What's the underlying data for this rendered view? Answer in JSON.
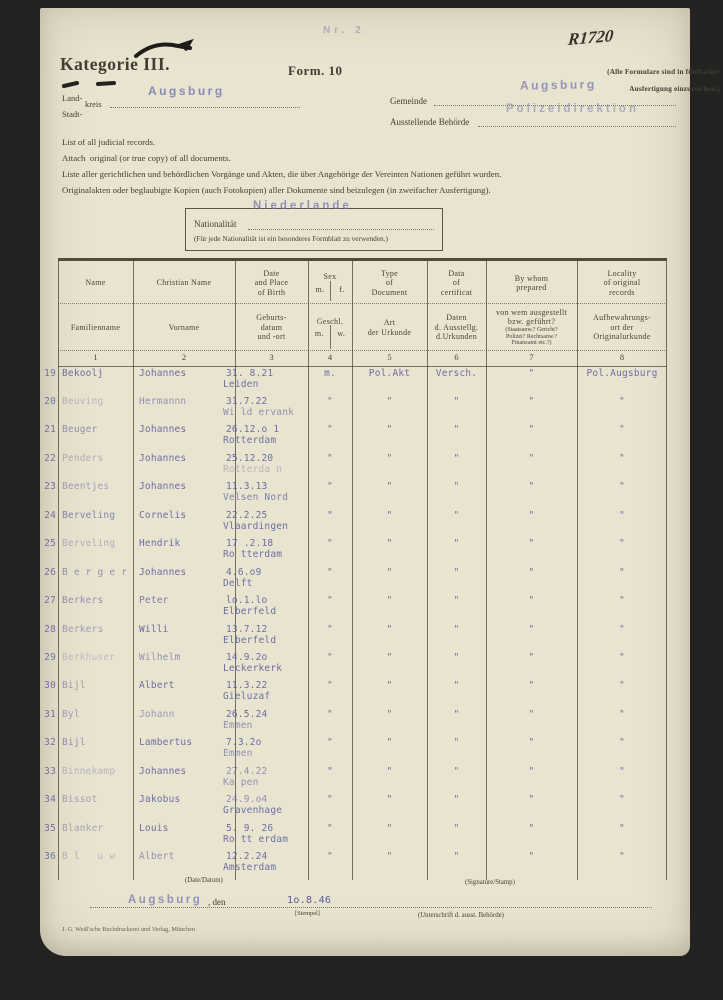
{
  "header": {
    "category": "Kategorie III.",
    "form": "Form. 10",
    "note_line1": "(Alle Formulare sind in fünffacher",
    "note_line2": "Ausfertigung einzureichen.)",
    "nr_stamp": "Nr. 2",
    "handwritten_ref": "R1720",
    "land_label": "Land-",
    "kreis_label": "kreis",
    "stadt_label": "Stadt-",
    "kreis_stamp": "Augsburg",
    "gemeinde_label": "Gemeinde",
    "gemeinde_stamp": "Augsburg",
    "behoerde_label": "Ausstellende Behörde",
    "behoerde_stamp": "Polizeidirektion"
  },
  "instructions": {
    "en1": "List of all judicial records.",
    "en2": "Attach  original (or true copy) of all documents.",
    "de1": "Liste aller gerichtlichen und behördlichen Vorgänge und Akten, die über Angehörige der Vereinten Nationen geführt wurden.",
    "de2": "Originalakten oder beglaubigte Kopien (auch Fotokopien) aller Dokumente sind beizulegen (in zweifacher Ausfertigung)."
  },
  "nationality": {
    "label": "Nationalität",
    "note": "(Für jede Nationalität ist ein besonderes Formblatt zu verwenden.)",
    "stamp": "Niederlande"
  },
  "table": {
    "columns": [
      {
        "en": [
          "Name"
        ],
        "de": [
          "Familienname"
        ],
        "num": "1"
      },
      {
        "en": [
          "Christian Name"
        ],
        "de": [
          "Vorname"
        ],
        "num": "2"
      },
      {
        "en": [
          "Date",
          "and Place",
          "of Birth"
        ],
        "de": [
          "Geburts-",
          "datum",
          "und -ort"
        ],
        "num": "3"
      },
      {
        "en": [
          "Sex"
        ],
        "en_sub": [
          "m.",
          "f."
        ],
        "de": [
          "Geschl."
        ],
        "de_sub": [
          "m.",
          "w."
        ],
        "num": "4"
      },
      {
        "en": [
          "Type",
          "of",
          "Document"
        ],
        "de": [
          "Art",
          "der Urkunde"
        ],
        "num": "5"
      },
      {
        "en": [
          "Data",
          "of",
          "certificat"
        ],
        "de": [
          "Daten",
          "d. Ausstellg.",
          "d.Urkunden"
        ],
        "num": "6"
      },
      {
        "en": [
          "By whom",
          "prepared"
        ],
        "de": [
          "von wem ausgestellt",
          "bzw. geführt?",
          "(Staatsanw.? Gericht?",
          "Polizei? Rechtsanw.?",
          "Finanzamt etc.?)"
        ],
        "de_small_from": 2,
        "num": "7"
      },
      {
        "en": [
          "Locality",
          "of original",
          "records"
        ],
        "de": [
          "Aufbewahrungs-",
          "ort der",
          "Originalurkunde"
        ],
        "num": "8"
      }
    ],
    "rows": [
      {
        "no": "19",
        "name": "Bekoolj",
        "first": "Johannes",
        "date": "31. 8.21",
        "place": "Leiden",
        "sex": "m.",
        "type": "Pol.Akt",
        "cert": "Versch.",
        "whom": "\"",
        "loc": "Pol.Augsburg"
      },
      {
        "no": "20",
        "name": "Beuving",
        "first": "Hermannn",
        "date": "31.7.22",
        "place": "Wi ld ervank",
        "sex": "\"",
        "type": "\"",
        "cert": "\"",
        "whom": "\"",
        "loc": "\"",
        "f": {
          "name": 0.35,
          "first": 0.6,
          "place": 0.6
        }
      },
      {
        "no": "21",
        "name": "Beuger",
        "first": "Johannes",
        "date": "26.12.o 1",
        "place": "Rotterdam",
        "sex": "\"",
        "type": "\"",
        "cert": "\"",
        "whom": "\"",
        "loc": "\"",
        "f": {
          "name": 0.6
        }
      },
      {
        "no": "22",
        "name": "Penders",
        "first": "Johannes",
        "date": "25.12.20",
        "place": "Rotterda n",
        "sex": "\"",
        "type": "\"",
        "cert": "\"",
        "whom": "\"",
        "loc": "\"",
        "f": {
          "name": 0.4,
          "place": 0.35
        }
      },
      {
        "no": "23",
        "name": "Beentjes",
        "first": "Johannes",
        "date": "11.3.13",
        "place": "Velsen Nord",
        "sex": "\"",
        "type": "\"",
        "cert": "\"",
        "whom": "\"",
        "loc": "\"",
        "f": {
          "name": 0.5,
          "place": 0.7
        }
      },
      {
        "no": "24",
        "name": "Berveling",
        "first": "Cornelis",
        "date": "22.2.25",
        "place": "Vlaardingen",
        "sex": "\"",
        "type": "\"",
        "cert": "\"",
        "whom": "\"",
        "loc": "\"",
        "f": {
          "name": 0.7
        }
      },
      {
        "no": "25",
        "name": "Berveling",
        "first": "Hendrik",
        "date": "17 .2.18",
        "place": "Ro tterdam",
        "sex": "\"",
        "type": "\"",
        "cert": "\"",
        "whom": "\"",
        "loc": "\"",
        "f": {
          "name": 0.4
        }
      },
      {
        "no": "26",
        "name": "B e r g e r",
        "first": "Johannes",
        "date": "4.6.o9",
        "place": "Delft",
        "sex": "\"",
        "type": "\"",
        "cert": "\"",
        "whom": "\"",
        "loc": "\"",
        "f": {
          "name": 0.6
        }
      },
      {
        "no": "27",
        "name": "Berkers",
        "first": "Peter",
        "date": "lo.1.lo",
        "place": "Elberfeld",
        "sex": "\"",
        "type": "\"",
        "cert": "\"",
        "whom": "\"",
        "loc": "\"",
        "f": {
          "name": 0.6,
          "first": 0.75
        }
      },
      {
        "no": "28",
        "name": "Berkers",
        "first": "Willi",
        "date": "13.7.12",
        "place": "Elberfeld",
        "sex": "\"",
        "type": "\"",
        "cert": "\"",
        "whom": "\"",
        "loc": "\"",
        "f": {
          "name": 0.5
        }
      },
      {
        "no": "29",
        "name": "Berkhuser",
        "first": "Wilhelm",
        "date": "14.9.2o",
        "place": "Leckerkerk",
        "sex": "\"",
        "type": "\"",
        "cert": "\"",
        "whom": "\"",
        "loc": "\"",
        "f": {
          "name": 0.3,
          "first": 0.6
        }
      },
      {
        "no": "30",
        "name": "Bijl",
        "first": "Albert",
        "date": "11.3.22",
        "place": "Gieluzaf",
        "sex": "\"",
        "type": "\"",
        "cert": "\"",
        "whom": "\"",
        "loc": "\"",
        "f": {
          "name": 0.55
        }
      },
      {
        "no": "31",
        "name": "Byl",
        "first": "Johann",
        "date": "26.5.24",
        "place": "Emmen",
        "sex": "\"",
        "type": "\"",
        "cert": "\"",
        "whom": "\"",
        "loc": "\"",
        "f": {
          "name": 0.5,
          "first": 0.55,
          "place": 0.6
        }
      },
      {
        "no": "32",
        "name": "Bijl",
        "first": "Lambertus",
        "date": "7.3.2o",
        "place": "Emmen",
        "sex": "\"",
        "type": "\"",
        "cert": "\"",
        "whom": "\"",
        "loc": "\"",
        "f": {
          "name": 0.6,
          "place": 0.6
        }
      },
      {
        "no": "33",
        "name": "Binnekamp",
        "first": "Johannes",
        "date": "27.4.22",
        "place": "Ka pen",
        "sex": "\"",
        "type": "\"",
        "cert": "\"",
        "whom": "\"",
        "loc": "\"",
        "f": {
          "name": 0.35,
          "date": 0.6,
          "place": 0.6
        }
      },
      {
        "no": "34",
        "name": "Bissot",
        "first": "Jakobus",
        "date": "24.9.o4",
        "place": "Gravenhage",
        "sex": "\"",
        "type": "\"",
        "cert": "\"",
        "whom": "\"",
        "loc": "\"",
        "f": {
          "name": 0.5,
          "date": 0.6
        }
      },
      {
        "no": "35",
        "name": "Blanker",
        "first": "Louis",
        "date": "5. 9. 26",
        "place": "Ro tt erdam",
        "sex": "\"",
        "type": "\"",
        "cert": "\"",
        "whom": "\"",
        "loc": "\"",
        "f": {
          "name": 0.45
        }
      },
      {
        "no": "36",
        "name": "B l   u w",
        "first": "Albert",
        "date": "12.2.24",
        "place": "Amsterdam",
        "sex": "\"",
        "type": "\"",
        "cert": "\"",
        "whom": "\"",
        "loc": "\"",
        "f": {
          "name": 0.35,
          "first": 0.6
        }
      }
    ]
  },
  "footer": {
    "date_label": "(Date/Datum)",
    "signature_label": "(Signature/Stamp)",
    "place_stamp": "Augsburg",
    "den": ", den",
    "date_value": "1o.8.46",
    "stempel": "[Stempel]",
    "unterschrift": "(Unterschrift d. ausst. Behörde)",
    "imprint": "J. G. Weiß'sche Buchdruckerei und Verlag, München"
  },
  "colors": {
    "paper": "#e9e4d0",
    "ink": "#423d33",
    "typed_blue": "#565a9c",
    "stamp_blue": "#6e71ae"
  }
}
